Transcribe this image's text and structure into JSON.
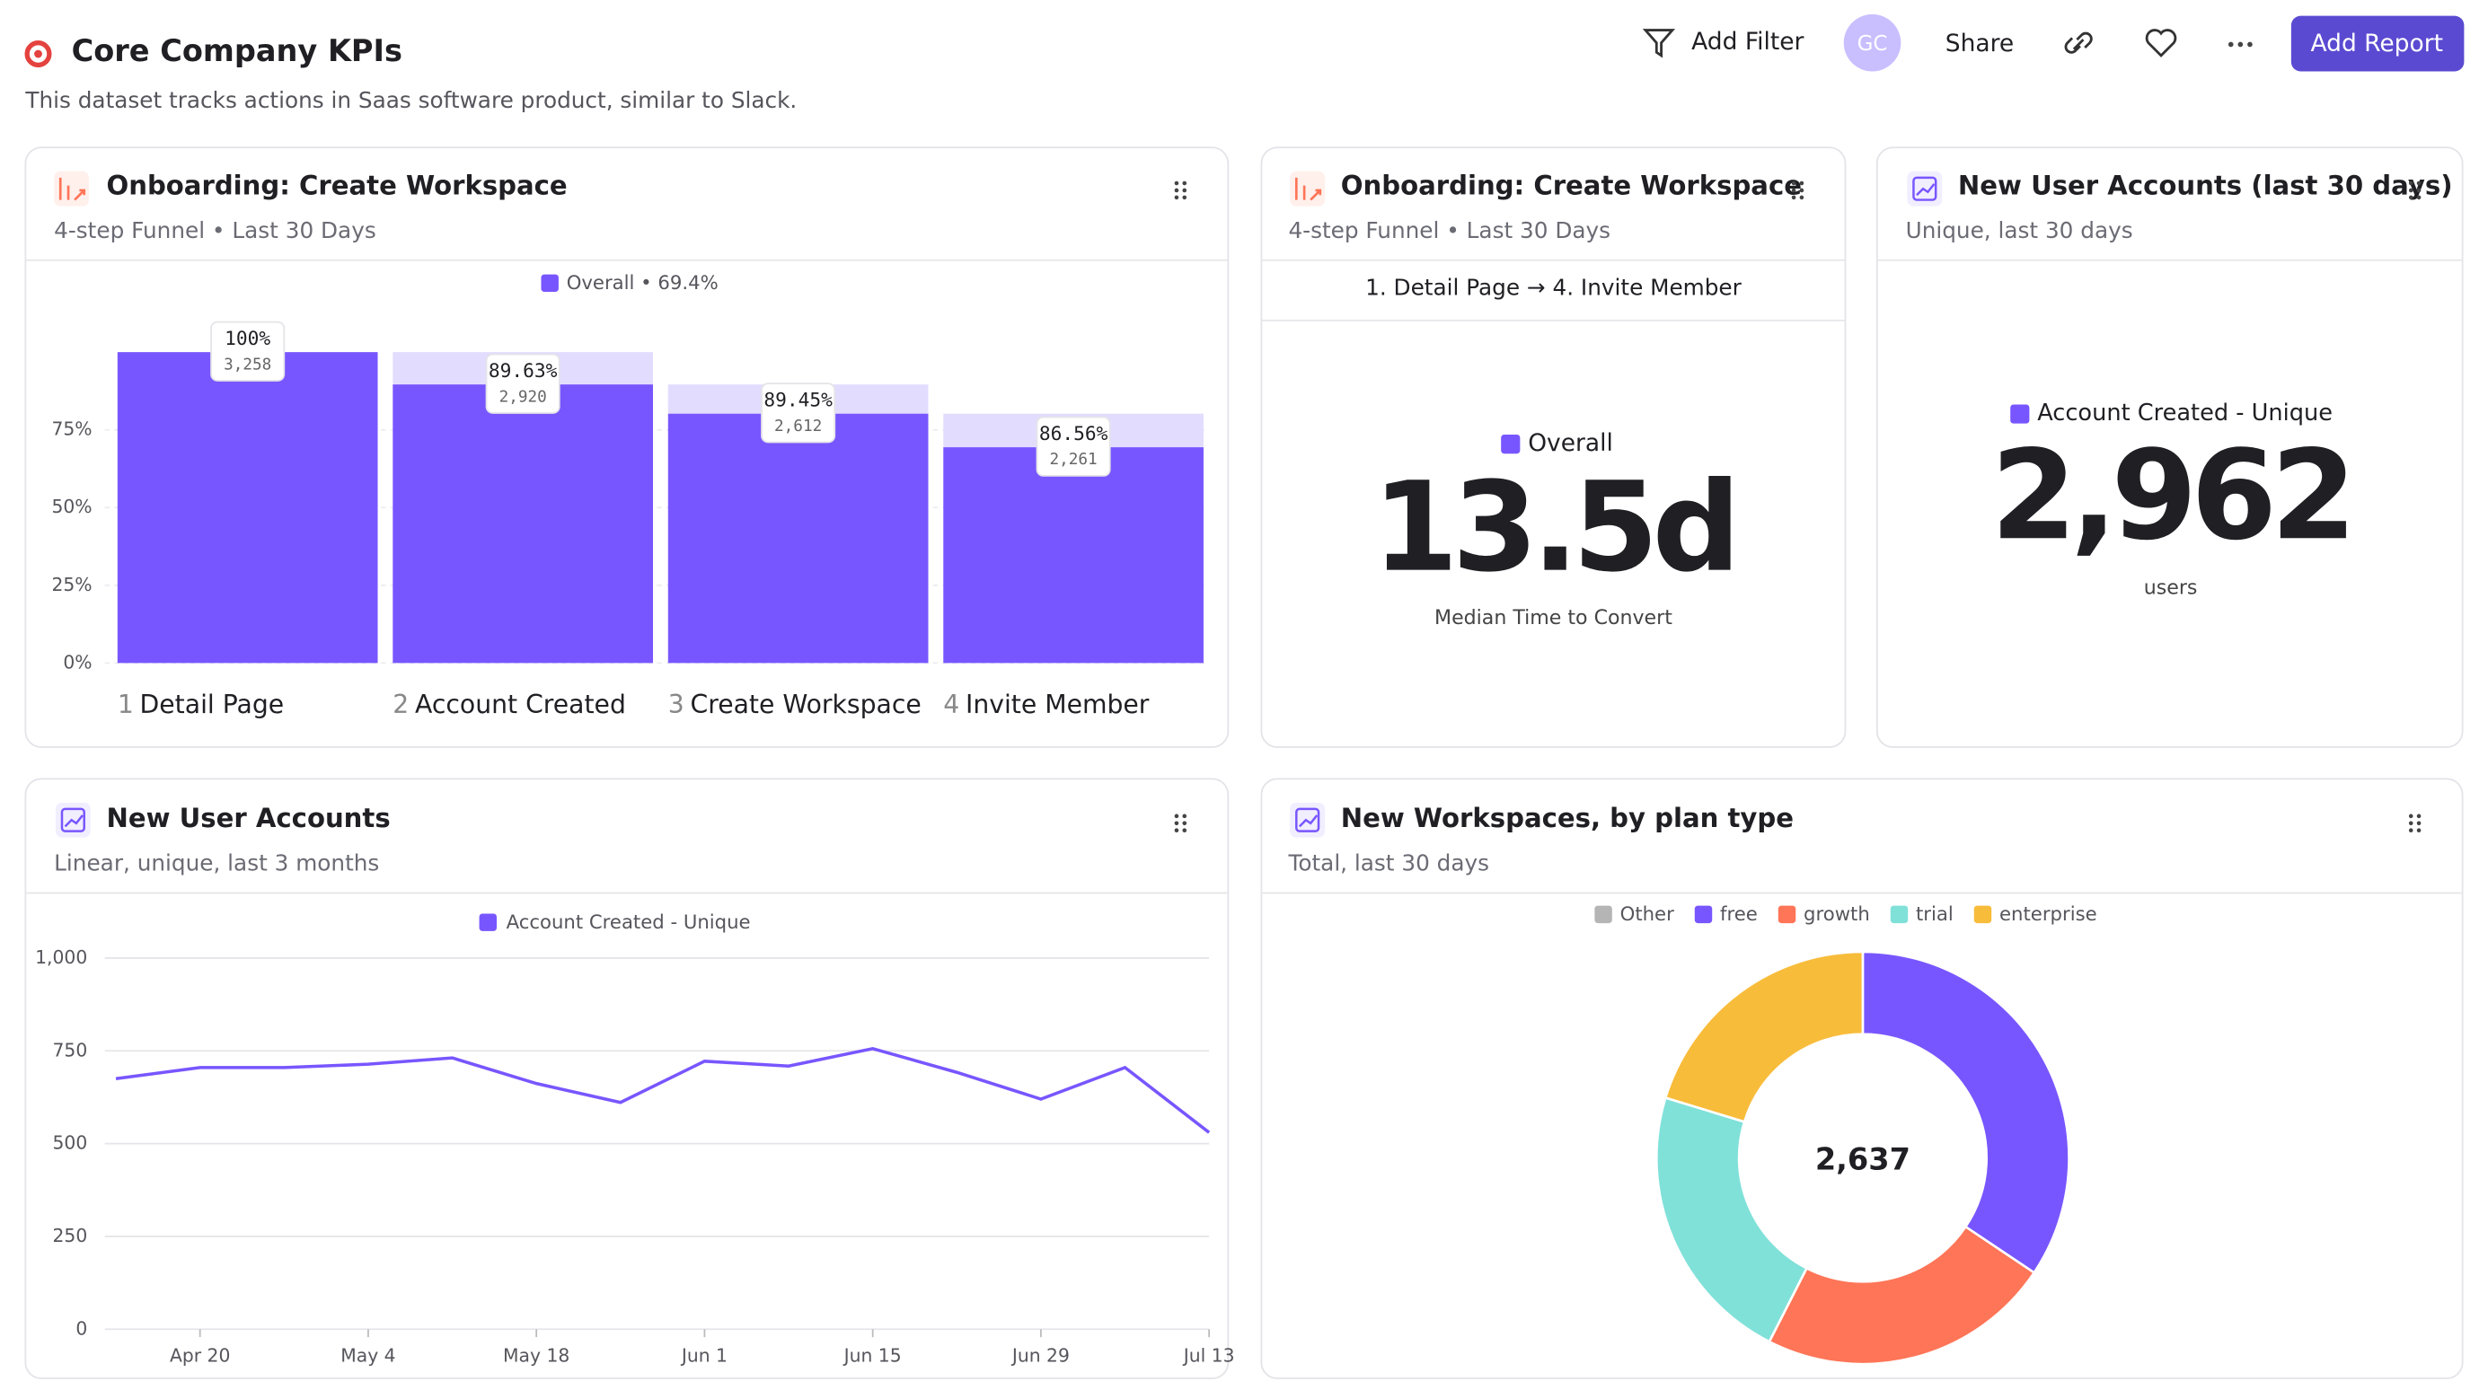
{
  "header": {
    "title": "Core Company KPIs",
    "description": "This dataset tracks actions in Saas software product, similar to Slack.",
    "add_filter": "Add Filter",
    "avatar": "GC",
    "share": "Share",
    "add_report": "Add Report"
  },
  "metrics": [
    {
      "title": "Onboarding: Create Workspace",
      "subtitle": "4-step Funnel • Last 30 Days",
      "steps": "1. Detail Page → 4. Invite Member",
      "legend": "Overall",
      "value": "13.5d",
      "caption": "Median Time to Convert"
    },
    {
      "title": "New User Accounts (last 30 days)",
      "subtitle": "Unique, last 30 days",
      "legend": "Account Created - Unique",
      "value": "2,962",
      "caption": "users"
    }
  ],
  "chart_data": [
    {
      "type": "bar",
      "title": "Onboarding: Create Workspace",
      "subtitle": "4-step Funnel • Last 30 Days",
      "legend": "Overall • 69.4%",
      "categories": [
        "Detail Page",
        "Account Created",
        "Create Workspace",
        "Invite Member"
      ],
      "step_numbers": [
        1,
        2,
        3,
        4
      ],
      "values": [
        100,
        89.6,
        80.2,
        69.4
      ],
      "color": "#7856ff",
      "dropoff_color": "#e2dcff",
      "conversion_labels": [
        "100%",
        "89.63%",
        "89.45%",
        "86.56%"
      ],
      "count_labels": [
        "3,258",
        "2,920",
        "2,612",
        "2,261"
      ],
      "ylim": [
        0,
        100
      ],
      "yticks": [
        {
          "value": 0,
          "label": "0%"
        },
        {
          "value": 25,
          "label": "25%"
        },
        {
          "value": 50,
          "label": "50%"
        },
        {
          "value": 75,
          "label": "75%"
        }
      ],
      "grid": true
    },
    {
      "type": "line",
      "title": "New User Accounts",
      "subtitle": "Linear, unique, last 3 months",
      "x": [
        null,
        "Apr 20",
        null,
        "May 4",
        null,
        "May 18",
        null,
        "Jun 1",
        null,
        "Jun 15",
        null,
        "Jun 29",
        null,
        "Jul 13"
      ],
      "series": [
        {
          "name": "Account Created - Unique",
          "color": "#7856ff",
          "values": [
            675,
            705,
            705,
            714,
            731,
            662,
            611,
            722,
            709,
            756,
            692,
            620,
            705,
            530
          ]
        }
      ],
      "ylim": [
        0,
        1000
      ],
      "yticks": [
        0,
        250,
        500,
        750,
        {
          "value": 1000,
          "label": "1,000"
        }
      ],
      "grid": true
    },
    {
      "type": "pie",
      "title": "New Workspaces, by plan type",
      "subtitle": "Total, last 30 days",
      "total_label": "2,637",
      "categories": [
        "Other",
        "free",
        "growth",
        "trial",
        "enterprise"
      ],
      "values": [
        0,
        907,
        609,
        586,
        535
      ],
      "colors": [
        "#b5b5b5",
        "#7856ff",
        "#ff7557",
        "#80e1d9",
        "#f8bc3b"
      ]
    }
  ]
}
